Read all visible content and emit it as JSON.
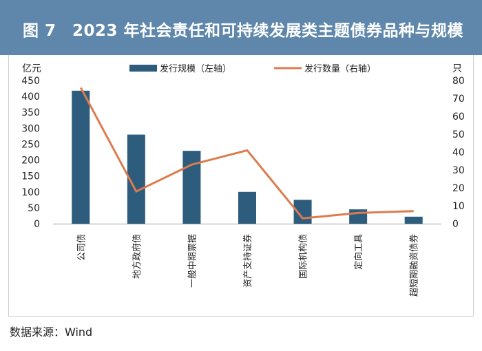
{
  "header": {
    "title": "图 7　2023 年社会责任和可持续发展类主题债券品种与规模"
  },
  "source": "数据来源：Wind",
  "colors": {
    "header_bg": "#5e87ab",
    "bar": "#2e5c7d",
    "line": "#dd7b4e"
  },
  "chart_data": {
    "type": "bar+line",
    "title": "2023 年社会责任和可持续发展类主题债券品种与规模",
    "categories": [
      "公司债",
      "地方政府债",
      "一般中期票据",
      "资产支持证券",
      "国际机构债",
      "定向工具",
      "超短期融资债券"
    ],
    "series": [
      {
        "name": "发行规模（左轴）",
        "type": "bar",
        "axis": "left",
        "values": [
          418,
          280,
          229,
          100,
          75,
          45,
          22
        ]
      },
      {
        "name": "发行数量（右轴）",
        "type": "line",
        "axis": "right",
        "values": [
          76,
          18,
          33,
          41,
          3,
          6,
          7
        ]
      }
    ],
    "y_left": {
      "label": "亿元",
      "min": 0,
      "max": 450,
      "ticks": [
        0,
        50,
        100,
        150,
        200,
        250,
        300,
        350,
        400,
        450
      ]
    },
    "y_right": {
      "label": "只",
      "min": 0,
      "max": 80,
      "ticks": [
        0,
        10,
        20,
        30,
        40,
        50,
        60,
        70,
        80
      ]
    },
    "legend_position": "top-center",
    "grid": false
  }
}
